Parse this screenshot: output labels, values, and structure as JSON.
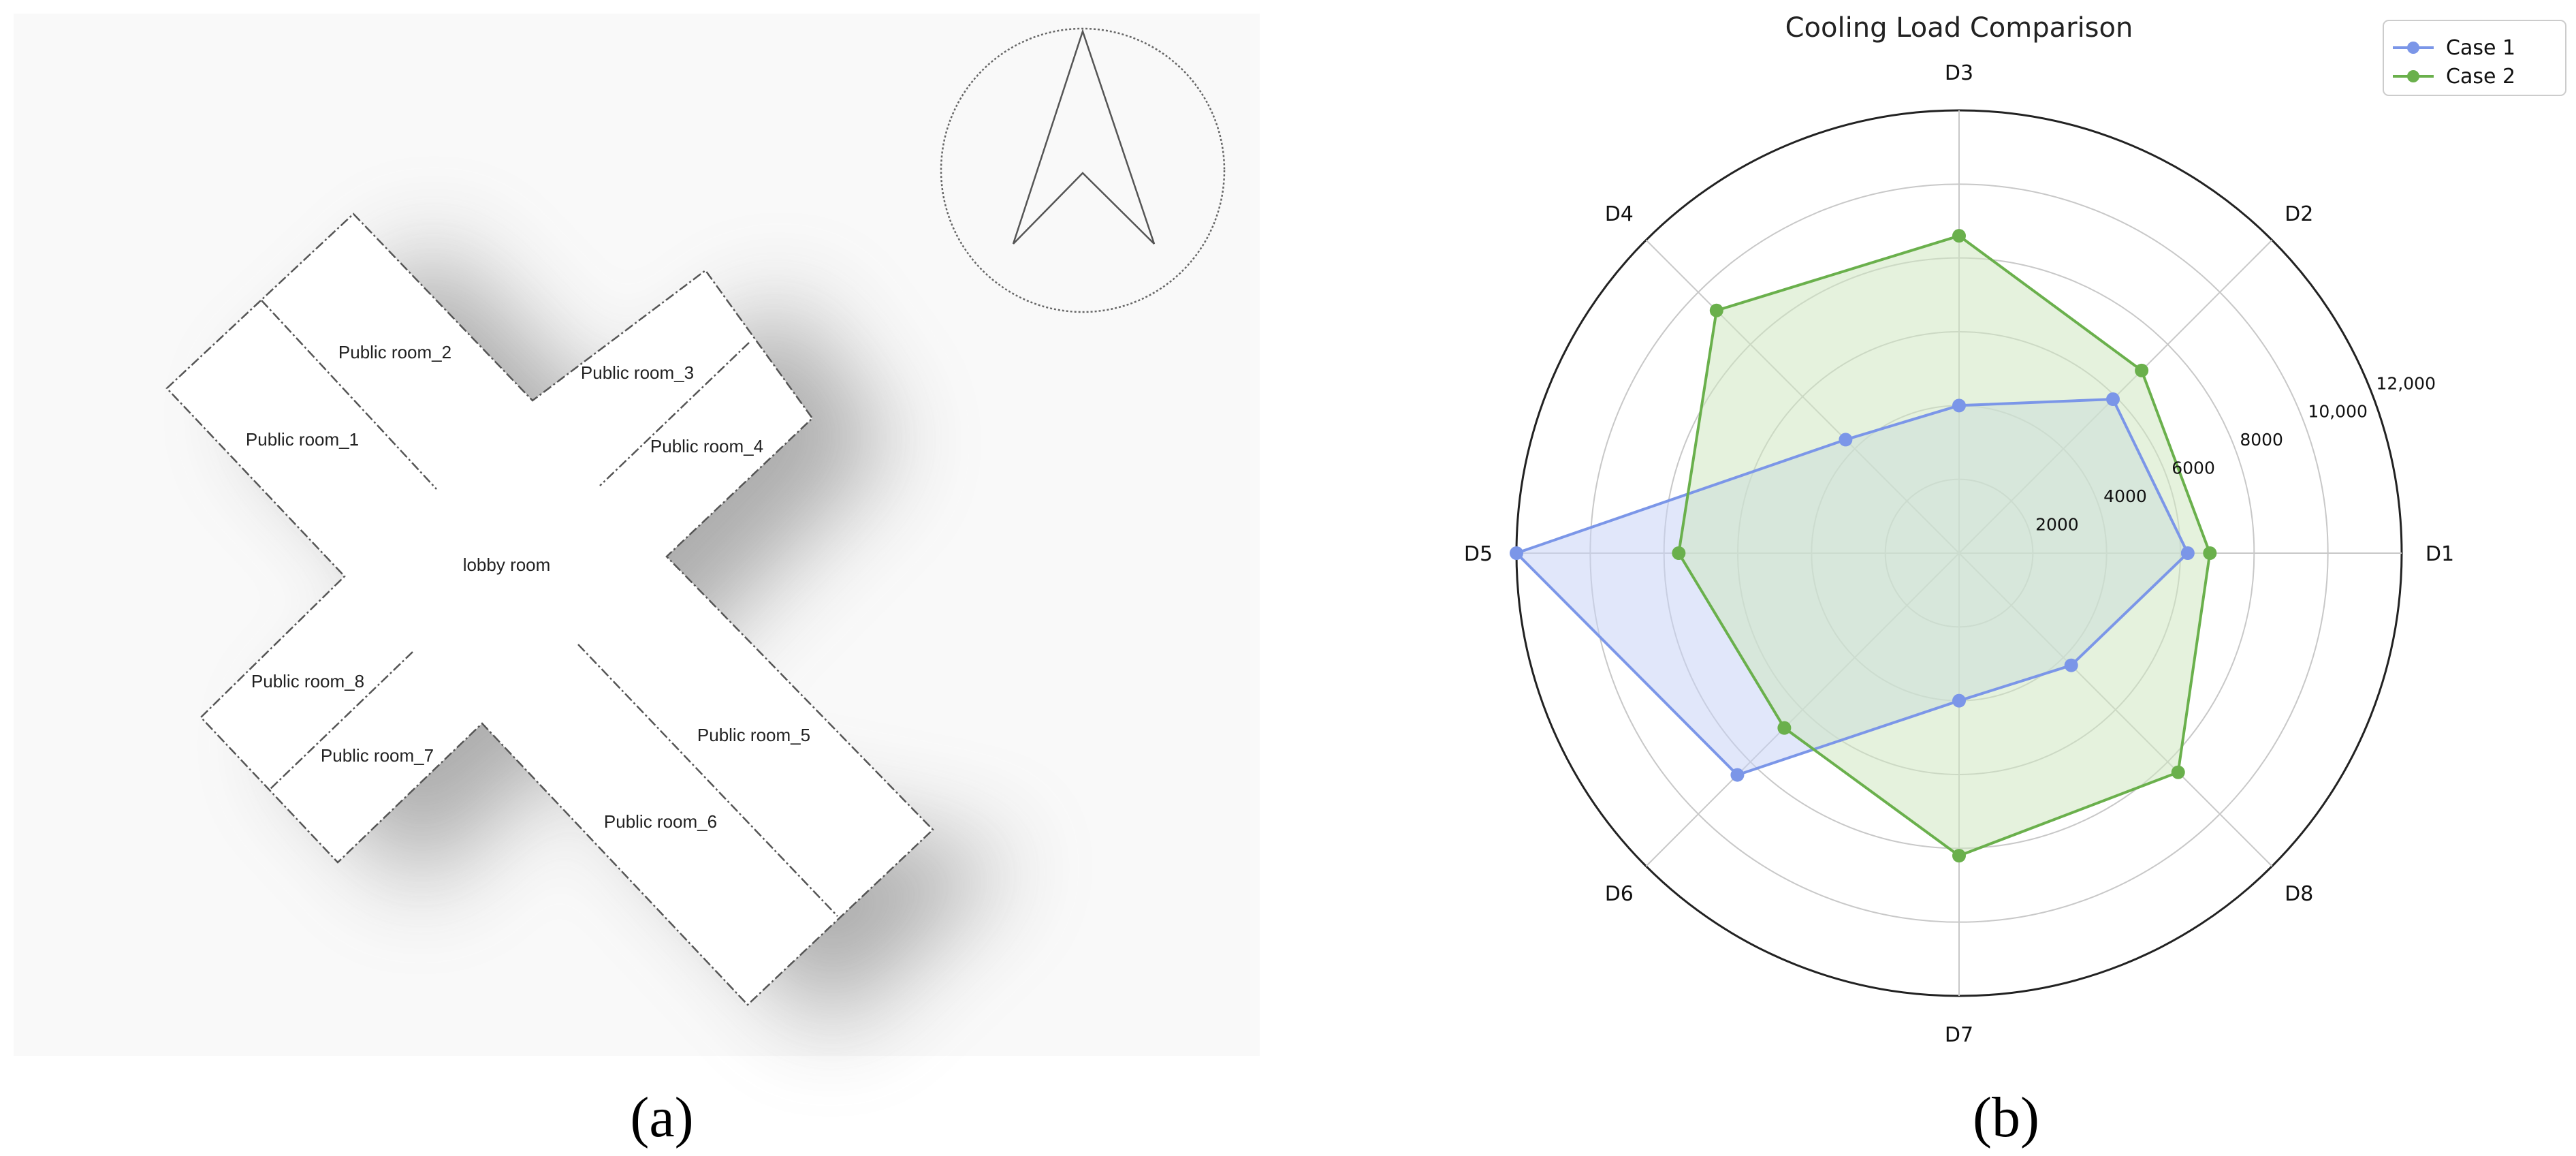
{
  "panel_a": {
    "panel_label": "(a)",
    "rooms": {
      "public_room_1": "Public room_1",
      "public_room_2": "Public room_2",
      "public_room_3": "Public room_3",
      "public_room_4": "Public room_4",
      "public_room_5": "Public room_5",
      "public_room_6": "Public room_6",
      "public_room_7": "Public room_7",
      "public_room_8": "Public room_8",
      "lobby_room": "lobby room"
    },
    "north_arrow_icon": "north-arrow-icon"
  },
  "panel_b": {
    "panel_label": "(b)"
  },
  "chart_data": {
    "type": "radar",
    "title": "Cooling Load Comparison",
    "categories": [
      "D1",
      "D2",
      "D3",
      "D4",
      "D5",
      "D6",
      "D7",
      "D8"
    ],
    "series": [
      {
        "name": "Case 1",
        "color": "#7b96e8",
        "fill": "#c9d3f5",
        "values": [
          6200,
          5900,
          4000,
          4350,
          12000,
          8500,
          4000,
          4300
        ]
      },
      {
        "name": "Case 2",
        "color": "#6ab04c",
        "fill": "#cfe8c1",
        "values": [
          6800,
          7000,
          8600,
          9300,
          7600,
          6700,
          8200,
          8400
        ]
      }
    ],
    "rlim": [
      0,
      12000
    ],
    "r_ticks": [
      2000,
      4000,
      6000,
      8000,
      10000,
      12000
    ],
    "r_tick_labels": [
      "2000",
      "4000",
      "6000",
      "8000",
      "10,000",
      "12,000"
    ],
    "grid": true,
    "legend_position": "top-right"
  }
}
